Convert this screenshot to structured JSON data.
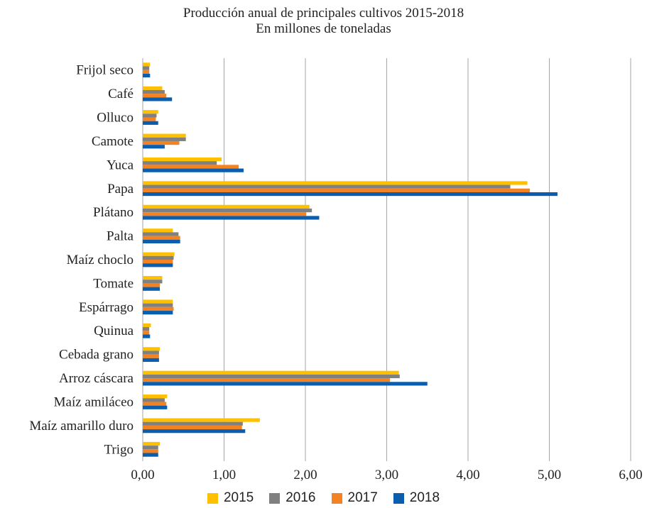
{
  "chart_data": {
    "type": "bar",
    "orientation": "horizontal",
    "title": "Producción anual de principales cultivos 2015-2018",
    "subtitle": "En millones de toneladas",
    "categories": [
      "Frijol seco",
      "Café",
      "Olluco",
      "Camote",
      "Yuca",
      "Papa",
      "Plátano",
      "Palta",
      "Maíz choclo",
      "Tomate",
      "Espárrago",
      "Quinua",
      "Cebada grano",
      "Arroz cáscara",
      "Maíz amiláceo",
      "Maíz amarillo duro",
      "Trigo"
    ],
    "series": [
      {
        "name": "2015",
        "color": "#FFC000",
        "values": [
          0.09,
          0.24,
          0.19,
          0.53,
          0.97,
          4.73,
          2.05,
          0.37,
          0.39,
          0.24,
          0.37,
          0.1,
          0.21,
          3.15,
          0.3,
          1.44,
          0.21
        ]
      },
      {
        "name": "2016",
        "color": "#808080",
        "values": [
          0.08,
          0.27,
          0.17,
          0.53,
          0.91,
          4.52,
          2.08,
          0.44,
          0.38,
          0.24,
          0.37,
          0.08,
          0.2,
          3.16,
          0.27,
          1.23,
          0.19
        ]
      },
      {
        "name": "2017",
        "color": "#F58220",
        "values": [
          0.08,
          0.29,
          0.16,
          0.45,
          1.18,
          4.76,
          2.01,
          0.46,
          0.37,
          0.21,
          0.38,
          0.08,
          0.2,
          3.04,
          0.29,
          1.22,
          0.19
        ]
      },
      {
        "name": "2018",
        "color": "#0B5DAE",
        "values": [
          0.09,
          0.36,
          0.19,
          0.27,
          1.24,
          5.1,
          2.17,
          0.46,
          0.37,
          0.21,
          0.37,
          0.09,
          0.2,
          3.5,
          0.3,
          1.26,
          0.19
        ]
      }
    ],
    "xlim": [
      0,
      6
    ],
    "xticks": [
      "0,00",
      "1,00",
      "2,00",
      "3,00",
      "4,00",
      "5,00",
      "6,00"
    ],
    "grid": true,
    "legend_position": "bottom"
  }
}
